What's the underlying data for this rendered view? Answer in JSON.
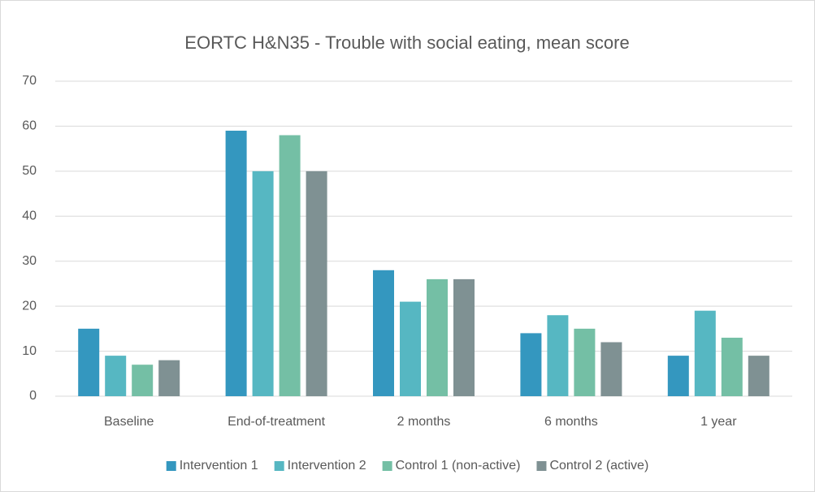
{
  "chart_data": {
    "type": "bar",
    "title": "EORTC H&N35 - Trouble with social eating, mean score",
    "categories": [
      "Baseline",
      "End-of-treatment",
      "2 months",
      "6 months",
      "1 year"
    ],
    "series": [
      {
        "name": "Intervention 1",
        "color": "#3497bf",
        "values": [
          15,
          59,
          28,
          14,
          9
        ]
      },
      {
        "name": "Intervention 2",
        "color": "#56b7c2",
        "values": [
          9,
          50,
          21,
          18,
          19
        ]
      },
      {
        "name": "Control 1 (non-active)",
        "color": "#74bfa5",
        "values": [
          7,
          58,
          26,
          15,
          13
        ]
      },
      {
        "name": "Control 2 (active)",
        "color": "#7f9193",
        "values": [
          8,
          50,
          26,
          12,
          9
        ]
      }
    ],
    "ylim": [
      0,
      70
    ],
    "yticks": [
      0,
      10,
      20,
      30,
      40,
      50,
      60,
      70
    ],
    "grid": true,
    "legend": "bottom"
  }
}
